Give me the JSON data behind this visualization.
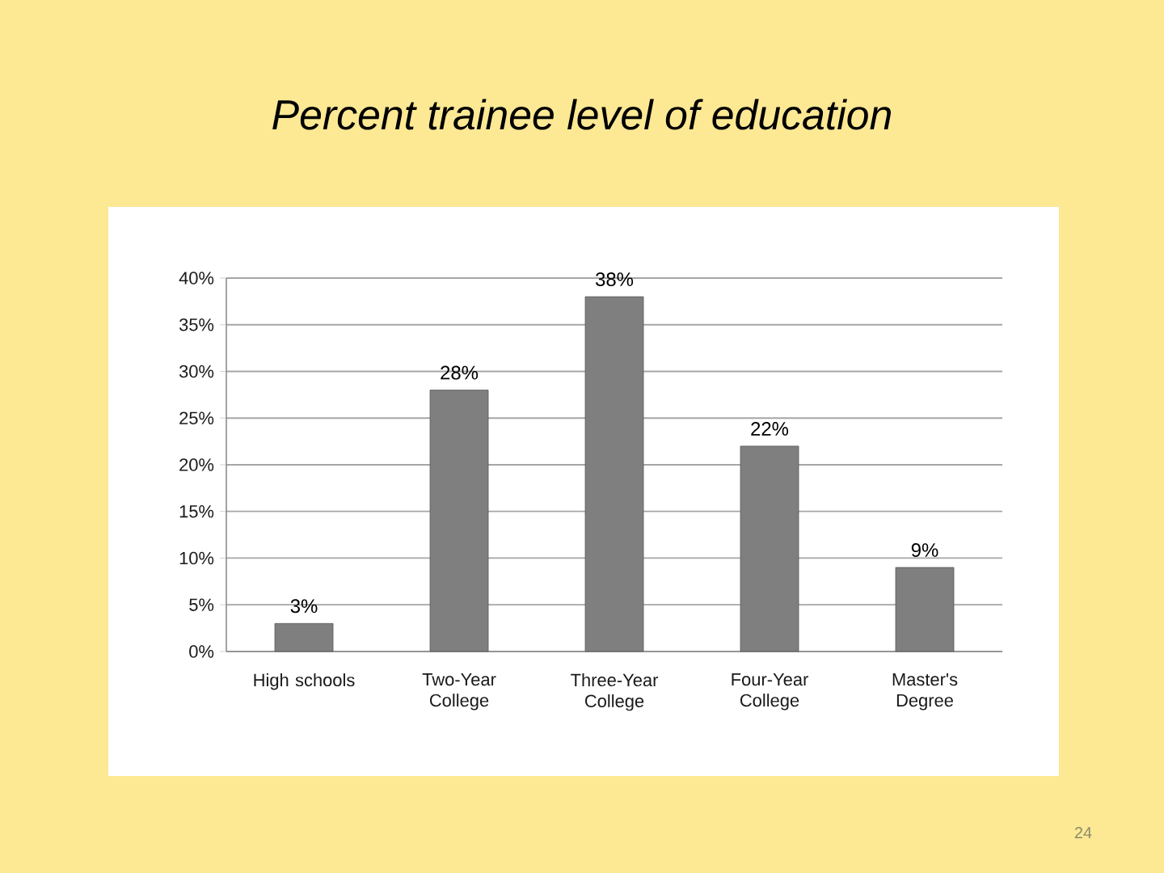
{
  "chart_data": {
    "type": "bar",
    "title": "Percent trainee level of education",
    "categories": [
      "High schools",
      "Two-Year College",
      "Three-Year College",
      "Four-Year College",
      "Master's Degree"
    ],
    "values": [
      3,
      28,
      38,
      22,
      9
    ],
    "value_labels": [
      "3%",
      "28%",
      "38%",
      "22%",
      "9%"
    ],
    "color": "#7f7f7f",
    "ylim": [
      0,
      40
    ],
    "yticks": [
      {
        "value": 0,
        "label": "0%"
      },
      {
        "value": 5,
        "label": "5%"
      },
      {
        "value": 10,
        "label": "10%"
      },
      {
        "value": 15,
        "label": "15%"
      },
      {
        "value": 20,
        "label": "20%"
      },
      {
        "value": 25,
        "label": "25%"
      },
      {
        "value": 30,
        "label": "30%"
      },
      {
        "value": 35,
        "label": "35%"
      },
      {
        "value": 40,
        "label": "40%"
      }
    ],
    "grid": "y",
    "annotations": [
      "24"
    ]
  }
}
